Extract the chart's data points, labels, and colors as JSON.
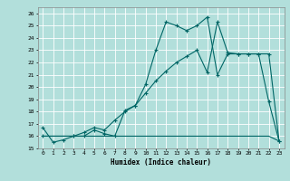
{
  "xlabel": "Humidex (Indice chaleur)",
  "background_color": "#b2dfdb",
  "grid_color": "#ffffff",
  "line_color": "#006666",
  "xlim": [
    -0.5,
    23.5
  ],
  "ylim": [
    15,
    26.5
  ],
  "yticks": [
    15,
    16,
    17,
    18,
    19,
    20,
    21,
    22,
    23,
    24,
    25,
    26
  ],
  "xticks": [
    0,
    1,
    2,
    3,
    4,
    5,
    6,
    7,
    8,
    9,
    10,
    11,
    12,
    13,
    14,
    15,
    16,
    17,
    18,
    19,
    20,
    21,
    22,
    23
  ],
  "line1_x": [
    0,
    1,
    2,
    3,
    4,
    5,
    6,
    7,
    8,
    9,
    10,
    11,
    12,
    13,
    14,
    15,
    16,
    17,
    18,
    19,
    20,
    21,
    22,
    23
  ],
  "line1_y": [
    16.7,
    15.5,
    15.7,
    16.0,
    16.0,
    16.5,
    16.2,
    16.0,
    18.1,
    18.5,
    20.2,
    23.0,
    25.3,
    25.0,
    24.6,
    25.0,
    25.7,
    21.0,
    22.7,
    22.7,
    22.7,
    22.7,
    18.8,
    15.6
  ],
  "line2_x": [
    0,
    1,
    2,
    3,
    4,
    5,
    6,
    7,
    8,
    9,
    10,
    11,
    12,
    13,
    14,
    15,
    16,
    17,
    18,
    19,
    20,
    21,
    22,
    23
  ],
  "line2_y": [
    16.0,
    16.0,
    16.0,
    16.0,
    16.0,
    16.0,
    16.0,
    16.0,
    16.0,
    16.0,
    16.0,
    16.0,
    16.0,
    16.0,
    16.0,
    16.0,
    16.0,
    16.0,
    16.0,
    16.0,
    16.0,
    16.0,
    16.0,
    15.6
  ],
  "line3_x": [
    0,
    3,
    4,
    5,
    6,
    7,
    8,
    9,
    10,
    11,
    12,
    13,
    14,
    15,
    16,
    17,
    18,
    19,
    20,
    21,
    22,
    23
  ],
  "line3_y": [
    16.0,
    16.0,
    16.3,
    16.7,
    16.5,
    17.3,
    18.0,
    18.5,
    19.5,
    20.5,
    21.3,
    22.0,
    22.5,
    23.0,
    21.2,
    25.3,
    22.8,
    22.7,
    22.7,
    22.7,
    22.7,
    15.6
  ]
}
